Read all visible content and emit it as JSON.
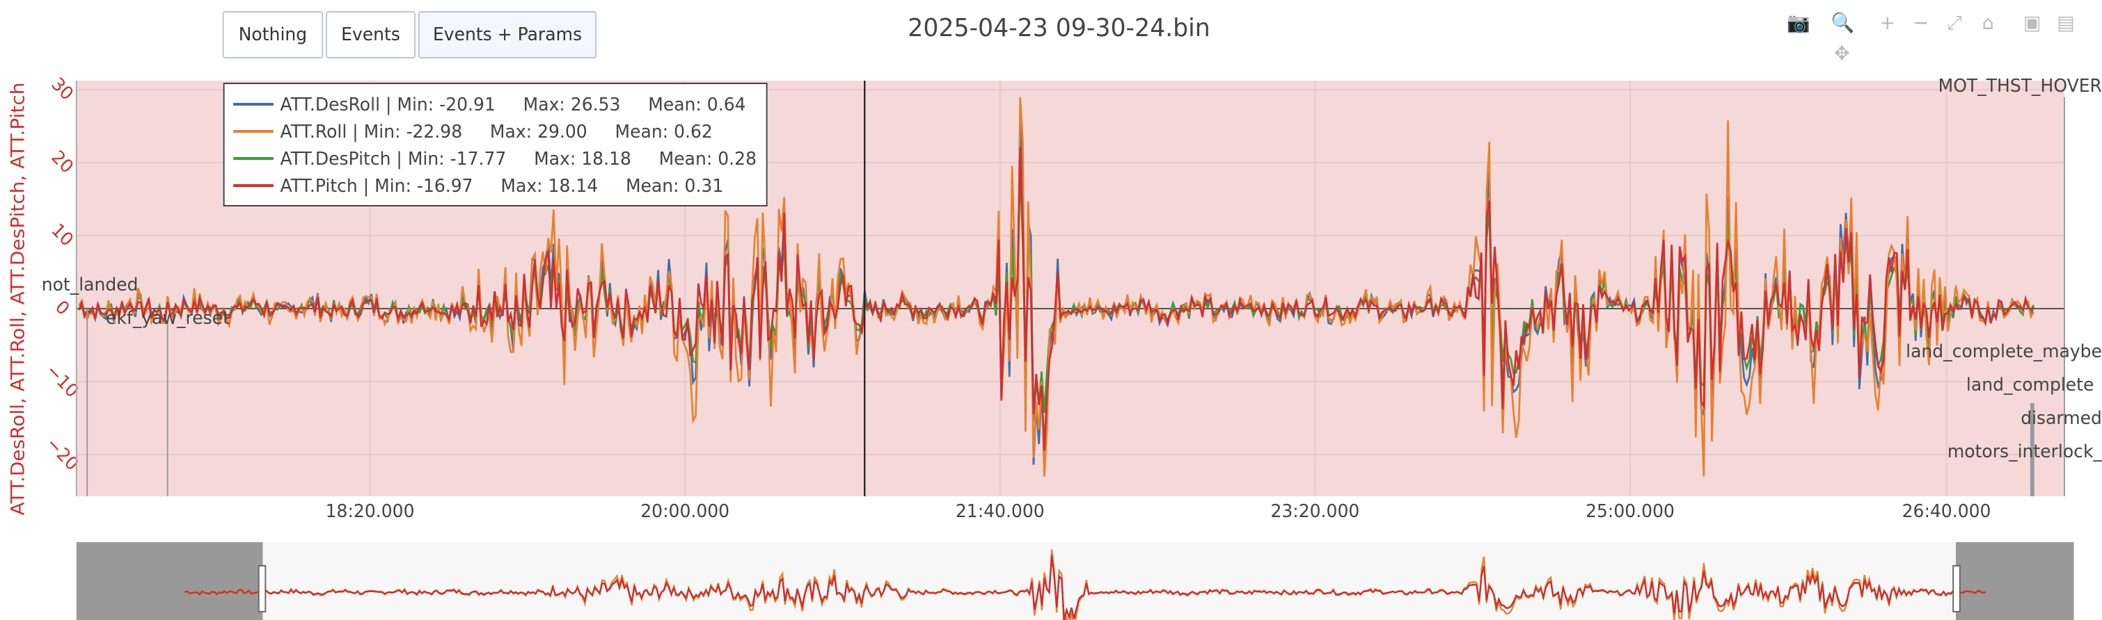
{
  "toolbar": {
    "buttons": [
      "Nothing",
      "Events",
      "Events + Params"
    ],
    "active_index": 2,
    "tools": [
      {
        "icon": "camera-icon",
        "glyph": "📷"
      },
      {
        "icon": "zoom-icon",
        "glyph": "🔍"
      },
      {
        "icon": "zoom-in-icon",
        "glyph": "+"
      },
      {
        "icon": "zoom-out-icon",
        "glyph": "−"
      },
      {
        "icon": "autoscale-icon",
        "glyph": "⤢"
      },
      {
        "icon": "home-icon",
        "glyph": "⌂"
      },
      {
        "icon": "save-icon",
        "glyph": "▣"
      },
      {
        "icon": "export-icon",
        "glyph": "▤"
      },
      {
        "icon": "pan-icon",
        "glyph": "✥"
      }
    ]
  },
  "chart_data": {
    "type": "line",
    "title": "2025-04-23 09-30-24.bin",
    "xlabel": "",
    "ylabel": "ATT.DesRoll, ATT.Roll, ATT.DesPitch, ATT.Pitch",
    "x_ticks": [
      "18:20.000",
      "20:00.000",
      "21:40.000",
      "23:20.000",
      "25:00.000",
      "26:40.000"
    ],
    "y_ticks": [
      "30",
      "20",
      "10",
      "0",
      "−10",
      "−20"
    ],
    "ylim": [
      -26,
      31
    ],
    "legend_position": "top-left",
    "series": [
      {
        "name": "ATT.DesRoll",
        "label": "ATT.DesRoll | Min: -20.91     Max: 26.53     Mean: 0.64",
        "color": "#3d6fad"
      },
      {
        "name": "ATT.Roll",
        "label": "ATT.Roll | Min: -22.98     Max: 29.00     Mean: 0.62",
        "color": "#e8812e"
      },
      {
        "name": "ATT.DesPitch",
        "label": "ATT.DesPitch | Min: -17.77     Max: 18.18     Mean: 0.28",
        "color": "#3a9e3a"
      },
      {
        "name": "ATT.Pitch",
        "label": "ATT.Pitch | Min: -16.97     Max: 18.14     Mean: 0.31",
        "color": "#cf3030"
      }
    ],
    "events": [
      "not_landed",
      "ekf_yaw_reset",
      "land_complete_maybe",
      "land_complete",
      "disarmed",
      "motors_interlock_"
    ],
    "params": [
      "MOT_THST_HOVER"
    ],
    "background_color": "#f5d9d9",
    "rangeslider": true
  }
}
